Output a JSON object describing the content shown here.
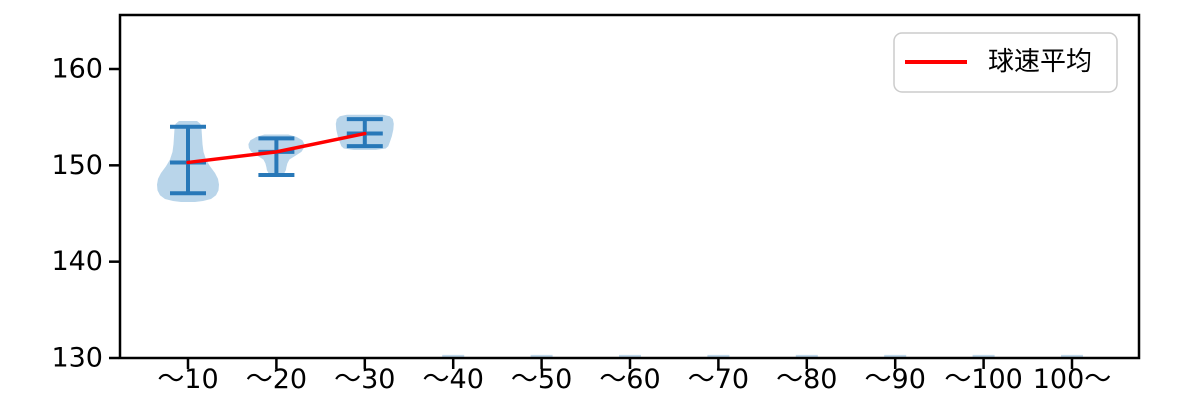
{
  "chart_data": {
    "type": "violin",
    "title": "",
    "xlabel": "",
    "ylabel": "",
    "grid": false,
    "categories": [
      "～10",
      "～20",
      "～30",
      "～40",
      "～50",
      "～60",
      "～70",
      "～80",
      "～90",
      "～100",
      "100～"
    ],
    "yticks": [
      130,
      140,
      150,
      160
    ],
    "ylim": [
      130,
      165.6
    ],
    "legend": {
      "label": "球速平均",
      "color": "#ff0000",
      "position": "upper-right"
    },
    "mean_line": {
      "name": "球速平均",
      "color": "#ff0000",
      "categories": [
        "～10",
        "～20",
        "～30"
      ],
      "values": [
        150.3,
        151.4,
        153.3
      ]
    },
    "violins": [
      {
        "category": "～10",
        "min": 147.1,
        "max": 154.0,
        "mean": 150.3,
        "body": [
          [
            154.6,
            9
          ],
          [
            154.3,
            12.5
          ],
          [
            153.8,
            13.5
          ],
          [
            153.0,
            14
          ],
          [
            152.2,
            14.5
          ],
          [
            151.4,
            15.5
          ],
          [
            150.6,
            18
          ],
          [
            149.9,
            22
          ],
          [
            149.2,
            27
          ],
          [
            148.6,
            30
          ],
          [
            148.0,
            31
          ],
          [
            147.4,
            30.5
          ],
          [
            146.9,
            28
          ],
          [
            146.5,
            23
          ],
          [
            146.3,
            15
          ],
          [
            146.2,
            7
          ]
        ]
      },
      {
        "category": "～20",
        "min": 149.0,
        "max": 152.8,
        "mean": 151.4,
        "body": [
          [
            153.2,
            12
          ],
          [
            152.95,
            20
          ],
          [
            152.6,
            26
          ],
          [
            152.2,
            28
          ],
          [
            151.8,
            27.5
          ],
          [
            151.4,
            25
          ],
          [
            151.0,
            19
          ],
          [
            150.6,
            13
          ],
          [
            150.2,
            11
          ],
          [
            149.8,
            10
          ],
          [
            149.5,
            9.5
          ],
          [
            149.2,
            8
          ],
          [
            149.05,
            4
          ]
        ]
      },
      {
        "category": "～30",
        "min": 152.0,
        "max": 154.8,
        "mean": 153.3,
        "body": [
          [
            155.25,
            18
          ],
          [
            155.1,
            25
          ],
          [
            154.8,
            28
          ],
          [
            154.3,
            29
          ],
          [
            153.7,
            28.5
          ],
          [
            153.0,
            27
          ],
          [
            152.4,
            25
          ],
          [
            152.0,
            23.5
          ],
          [
            151.75,
            21
          ],
          [
            151.6,
            11
          ]
        ]
      },
      {
        "category": "～40",
        "empty": true,
        "flat_value": 130.2
      },
      {
        "category": "～50",
        "empty": true,
        "flat_value": 130.2
      },
      {
        "category": "～60",
        "empty": true,
        "flat_value": 130.2
      },
      {
        "category": "～70",
        "empty": true,
        "flat_value": 130.2
      },
      {
        "category": "～80",
        "empty": true,
        "flat_value": 130.2
      },
      {
        "category": "～90",
        "empty": true,
        "flat_value": 130.2
      },
      {
        "category": "～100",
        "empty": true,
        "flat_value": 130.2
      },
      {
        "category": "100～",
        "empty": true,
        "flat_value": 130.2
      }
    ],
    "colors": {
      "violin_fill": "#b9d5ea",
      "violin_line": "#2878b8",
      "mean_line": "#ff0000",
      "axis": "#000000",
      "legend_border": "#cccccc",
      "legend_bg": "#ffffff"
    }
  }
}
